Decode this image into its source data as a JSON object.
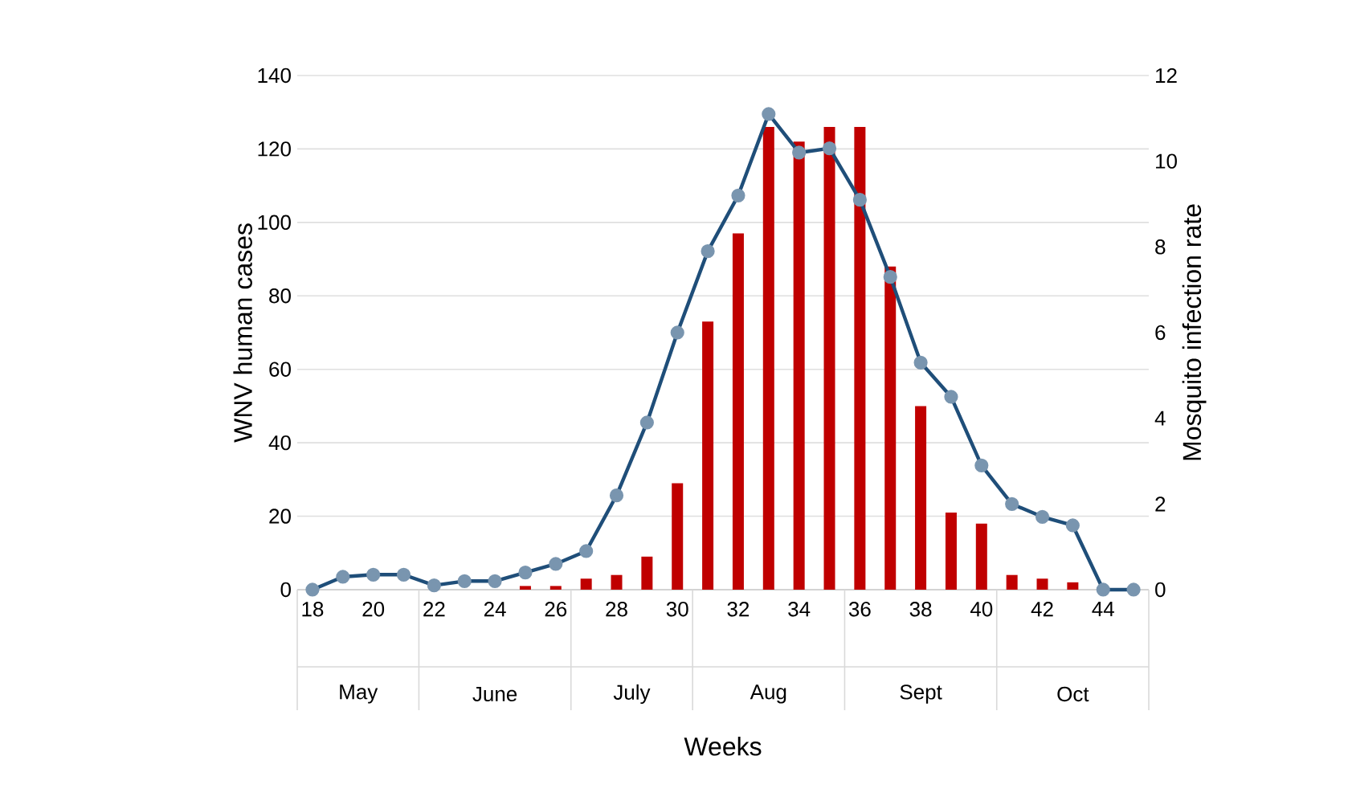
{
  "chart_data": {
    "type": "bar",
    "xlabel": "Weeks",
    "ylabel": "WNV human cases",
    "y2label": "Mosquito infection rate",
    "categories": [
      "18",
      null,
      "20",
      null,
      "22",
      null,
      "24",
      null,
      "26",
      null,
      "28",
      null,
      "30",
      null,
      "32",
      null,
      "34",
      null,
      "36",
      null,
      "38",
      null,
      "40",
      null,
      "42",
      null,
      "44",
      null
    ],
    "series": [
      {
        "color": "#c00000",
        "values": [
          0,
          0,
          0,
          0,
          0,
          0,
          0,
          1,
          1,
          3,
          4,
          9,
          29,
          73,
          97,
          126,
          122,
          126,
          126,
          88,
          50,
          21,
          18,
          4,
          3,
          2,
          0,
          0
        ]
      },
      {
        "type": "line",
        "axis": "y2",
        "color": "#1f4e79",
        "marker": "circle",
        "values": [
          0,
          0.3,
          0.35,
          0.35,
          0.1,
          0.2,
          0.2,
          0.4,
          0.6,
          0.9,
          2.2,
          3.9,
          6.0,
          7.9,
          9.2,
          11.1,
          10.2,
          10.3,
          9.1,
          7.3,
          5.3,
          4.5,
          2.9,
          2.0,
          1.7,
          1.5,
          0,
          0
        ]
      }
    ],
    "ylim": [
      0,
      140
    ],
    "yticks": [
      0,
      20,
      40,
      60,
      80,
      100,
      120,
      140
    ],
    "y2lim": [
      0,
      12
    ],
    "y2ticks": [
      0,
      2,
      4,
      6,
      8,
      10,
      12
    ],
    "grid": "y",
    "annotations": [
      "May",
      "June",
      "July",
      "Aug",
      "Sept",
      "Oct"
    ]
  }
}
